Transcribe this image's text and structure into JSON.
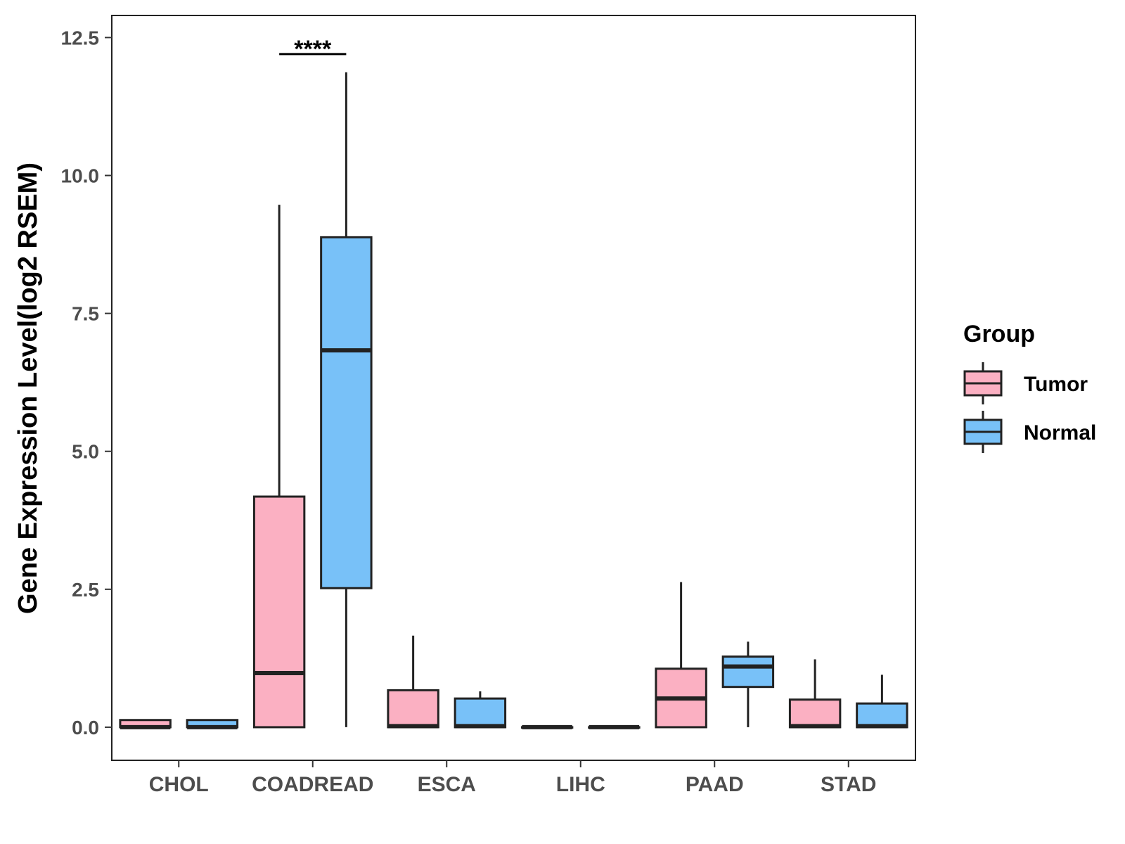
{
  "chart_data": {
    "type": "boxplot",
    "title": "",
    "xlabel": "",
    "ylabel": "Gene Expression Level(log2 RSEM)",
    "ylim": [
      -0.6,
      12.9
    ],
    "yticks": [
      0.0,
      2.5,
      5.0,
      7.5,
      10.0,
      12.5
    ],
    "ytick_labels": [
      "0.0",
      "2.5",
      "5.0",
      "7.5",
      "10.0",
      "12.5"
    ],
    "categories": [
      "CHOL",
      "COADREAD",
      "ESCA",
      "LIHC",
      "PAAD",
      "STAD"
    ],
    "legend": {
      "title": "Group",
      "position": "right",
      "entries": [
        {
          "name": "Tumor",
          "color": "#fbb0c2"
        },
        {
          "name": "Normal",
          "color": "#78c1f8"
        }
      ]
    },
    "series": [
      {
        "name": "Tumor",
        "color": "#fbb0c2",
        "boxes": [
          {
            "category": "CHOL",
            "min": 0.0,
            "q1": 0.0,
            "median": 0.0,
            "q3": 0.13,
            "max": 0.13
          },
          {
            "category": "COADREAD",
            "min": 0.0,
            "q1": 0.0,
            "median": 0.98,
            "q3": 4.18,
            "max": 9.47
          },
          {
            "category": "ESCA",
            "min": 0.0,
            "q1": 0.0,
            "median": 0.02,
            "q3": 0.67,
            "max": 1.66
          },
          {
            "category": "LIHC",
            "min": 0.0,
            "q1": 0.0,
            "median": 0.0,
            "q3": 0.0,
            "max": 0.0
          },
          {
            "category": "PAAD",
            "min": 0.0,
            "q1": 0.0,
            "median": 0.52,
            "q3": 1.06,
            "max": 2.63
          },
          {
            "category": "STAD",
            "min": 0.0,
            "q1": 0.0,
            "median": 0.02,
            "q3": 0.5,
            "max": 1.23
          }
        ]
      },
      {
        "name": "Normal",
        "color": "#78c1f8",
        "boxes": [
          {
            "category": "CHOL",
            "min": 0.0,
            "q1": 0.0,
            "median": 0.0,
            "q3": 0.13,
            "max": 0.13
          },
          {
            "category": "COADREAD",
            "min": 0.0,
            "q1": 2.52,
            "median": 6.83,
            "q3": 8.88,
            "max": 11.87
          },
          {
            "category": "ESCA",
            "min": 0.0,
            "q1": 0.0,
            "median": 0.02,
            "q3": 0.52,
            "max": 0.65
          },
          {
            "category": "LIHC",
            "min": 0.0,
            "q1": 0.0,
            "median": 0.0,
            "q3": 0.0,
            "max": 0.0
          },
          {
            "category": "PAAD",
            "min": 0.0,
            "q1": 0.73,
            "median": 1.1,
            "q3": 1.28,
            "max": 1.55
          },
          {
            "category": "STAD",
            "min": 0.0,
            "q1": 0.0,
            "median": 0.02,
            "q3": 0.43,
            "max": 0.95
          }
        ]
      }
    ],
    "annotations": [
      {
        "category": "COADREAD",
        "text": "****",
        "y": 12.2
      }
    ]
  }
}
